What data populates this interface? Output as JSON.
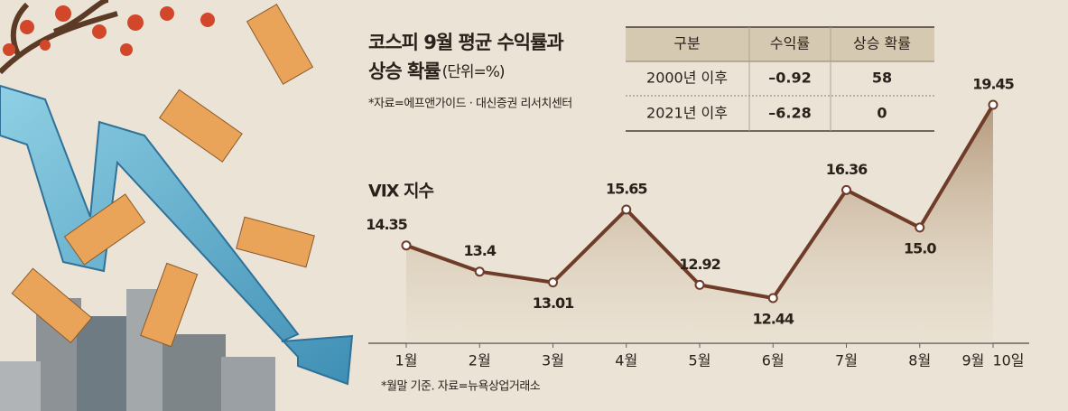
{
  "title_lines": [
    "코스피 9월 평균 수익률과",
    "상승 확률"
  ],
  "unit": "(단위=%)",
  "source": "*자료=에프앤가이드 · 대신증권 리서치센터",
  "table": {
    "header": [
      "구분",
      "수익률",
      "상승 확률"
    ],
    "rows": [
      [
        "2000년 이후",
        "–0.92",
        "58"
      ],
      [
        "2021년 이후",
        "–6.28",
        "0"
      ]
    ]
  },
  "chart_data": {
    "type": "line",
    "title": "VIX 지수",
    "categories": [
      "1월",
      "2월",
      "3월",
      "4월",
      "5월",
      "6월",
      "7월",
      "8월",
      "9월 10일"
    ],
    "values": [
      14.35,
      13.4,
      13.01,
      15.65,
      12.92,
      12.44,
      16.36,
      15.0,
      19.45
    ],
    "value_labels": [
      "14.35",
      "13.4",
      "13.01",
      "15.65",
      "12.92",
      "12.44",
      "16.36",
      "15.0",
      "19.45"
    ],
    "color": "#6e3c28"
  },
  "footnote": "*월말 기준. 자료=뉴욕상업거래소"
}
